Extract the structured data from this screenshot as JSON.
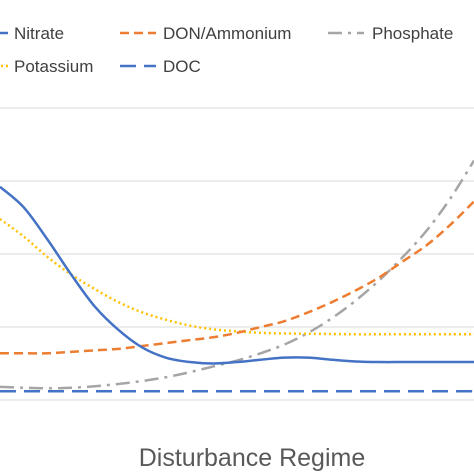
{
  "chart_data": {
    "type": "line",
    "title": "",
    "xlabel": "Disturbance Regime",
    "ylabel": "",
    "xlim": [
      0,
      10
    ],
    "ylim": [
      0,
      10
    ],
    "grid": true,
    "legend_placement": "top",
    "series": [
      {
        "name": "Nitrate",
        "color": "#4472C4",
        "dash": "solid",
        "x": [
          0,
          0.5,
          1,
          1.5,
          2,
          2.5,
          3,
          3.5,
          4,
          4.5,
          5,
          5.5,
          6,
          6.5,
          7,
          7.5,
          8,
          8.5,
          9,
          9.5,
          10
        ],
        "y": [
          7.3,
          6.6,
          5.5,
          4.3,
          3.2,
          2.4,
          1.8,
          1.45,
          1.3,
          1.25,
          1.3,
          1.38,
          1.45,
          1.45,
          1.38,
          1.32,
          1.3,
          1.3,
          1.3,
          1.3,
          1.3
        ]
      },
      {
        "name": "DON/Ammonium",
        "color": "#ED7D31",
        "dash": "dash",
        "x": [
          0,
          0.5,
          1,
          1.5,
          2,
          2.5,
          3,
          3.5,
          4,
          4.5,
          5,
          5.5,
          6,
          6.5,
          7,
          7.5,
          8,
          8.5,
          9,
          9.5,
          10
        ],
        "y": [
          1.6,
          1.6,
          1.6,
          1.65,
          1.7,
          1.75,
          1.85,
          1.95,
          2.05,
          2.15,
          2.3,
          2.5,
          2.7,
          3.0,
          3.35,
          3.75,
          4.2,
          4.75,
          5.3,
          6.0,
          6.8
        ]
      },
      {
        "name": "Phosphate",
        "color": "#A5A5A5",
        "dash": "dashdot",
        "x": [
          0,
          0.5,
          1,
          1.5,
          2,
          2.5,
          3,
          3.5,
          4,
          4.5,
          5,
          5.5,
          6,
          6.5,
          7,
          7.5,
          8,
          8.5,
          9,
          9.5,
          10
        ],
        "y": [
          0.45,
          0.42,
          0.4,
          0.42,
          0.47,
          0.55,
          0.65,
          0.78,
          0.95,
          1.15,
          1.35,
          1.6,
          1.9,
          2.3,
          2.8,
          3.4,
          4.1,
          4.9,
          5.8,
          6.9,
          8.2
        ]
      },
      {
        "name": "Potassium",
        "color": "#FFC000",
        "dash": "dot",
        "x": [
          0,
          0.5,
          1,
          1.5,
          2,
          2.5,
          3,
          3.5,
          4,
          4.5,
          5,
          5.5,
          6,
          6.5,
          7,
          7.5,
          8,
          8.5,
          9,
          9.5,
          10
        ],
        "y": [
          6.2,
          5.6,
          4.9,
          4.3,
          3.8,
          3.35,
          3.0,
          2.75,
          2.55,
          2.42,
          2.35,
          2.3,
          2.28,
          2.27,
          2.26,
          2.25,
          2.25,
          2.25,
          2.25,
          2.25,
          2.25
        ]
      },
      {
        "name": "DOC",
        "color": "#4472C4",
        "dash": "longdash",
        "x": [
          0,
          1,
          2,
          3,
          4,
          5,
          6,
          7,
          8,
          9,
          10
        ],
        "y": [
          0.3,
          0.3,
          0.3,
          0.3,
          0.3,
          0.3,
          0.3,
          0.3,
          0.3,
          0.3,
          0.3
        ]
      }
    ]
  }
}
